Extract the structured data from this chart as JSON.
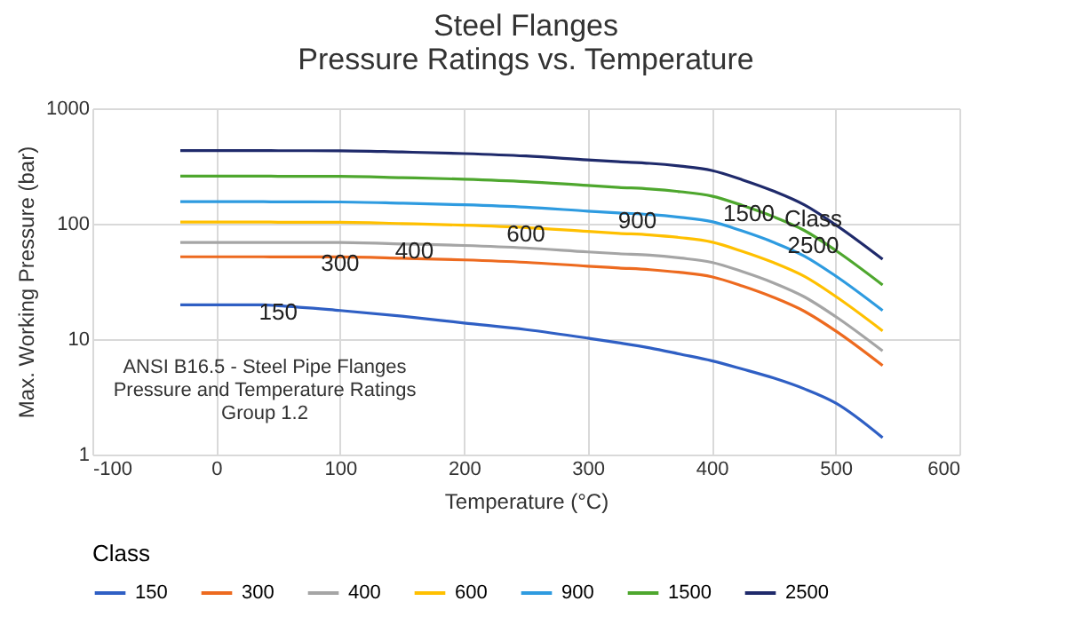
{
  "chart_data": {
    "type": "line",
    "title": "Steel Flanges\nPressure Ratings vs. Temperature",
    "xlabel": "Temperature (°C)",
    "ylabel": "Max. Working Pressure (bar)",
    "legend_title": "Class",
    "x": [
      -29,
      38,
      50,
      100,
      150,
      200,
      250,
      300,
      325,
      350,
      375,
      400,
      425,
      450,
      475,
      500,
      538
    ],
    "series": [
      {
        "name": "150",
        "color": "#2f5fc4",
        "values": [
          19.8,
          19.8,
          19.5,
          17.7,
          15.8,
          13.8,
          12.1,
          10.2,
          9.3,
          8.4,
          7.4,
          6.5,
          5.5,
          4.6,
          3.7,
          2.8,
          1.4
        ]
      },
      {
        "name": "300",
        "color": "#ed6a1f",
        "values": [
          51.7,
          51.7,
          51.5,
          51.5,
          50.2,
          48.6,
          46.3,
          42.9,
          41.4,
          40.0,
          37.8,
          34.7,
          28.8,
          23.0,
          17.4,
          11.8,
          5.9
        ]
      },
      {
        "name": "400",
        "color": "#a5a5a5",
        "values": [
          68.9,
          68.9,
          68.7,
          68.7,
          66.8,
          64.8,
          61.7,
          57.0,
          55.0,
          53.4,
          50.4,
          46.3,
          38.4,
          30.7,
          23.2,
          15.7,
          7.9
        ]
      },
      {
        "name": "600",
        "color": "#ffc000",
        "values": [
          103.4,
          103.4,
          103.0,
          103.0,
          100.3,
          97.2,
          92.7,
          85.7,
          82.6,
          80.0,
          75.7,
          69.4,
          57.5,
          46.0,
          34.9,
          23.5,
          11.8
        ]
      },
      {
        "name": "900",
        "color": "#2e9be0",
        "values": [
          155.1,
          155.1,
          154.6,
          154.4,
          150.6,
          145.8,
          139.0,
          128.6,
          124.0,
          120.1,
          113.5,
          104.2,
          86.3,
          69.0,
          52.3,
          35.3,
          17.7
        ]
      },
      {
        "name": "1500",
        "color": "#4ea72e",
        "values": [
          258.6,
          258.6,
          257.6,
          257.4,
          250.8,
          243.2,
          231.8,
          214.4,
          206.6,
          200.1,
          189.2,
          173.6,
          143.8,
          115.0,
          87.2,
          58.8,
          29.5
        ]
      },
      {
        "name": "2500",
        "color": "#1f2a6b",
        "values": [
          430.9,
          430.9,
          429.4,
          429.0,
          418.2,
          405.4,
          386.2,
          357.1,
          344.3,
          333.5,
          315.3,
          289.3,
          239.7,
          191.7,
          145.3,
          97.9,
          49.2
        ]
      }
    ],
    "annotations": [
      "ANSI B16.5 - Steel Pipe Flanges\nPressure and Temperature Ratings\nGroup 1.2",
      {
        "text": "150",
        "x": 50,
        "y": 19.5
      },
      {
        "text": "300",
        "x": 100,
        "y": 51.5
      },
      {
        "text": "400",
        "x": 160,
        "y": 66
      },
      {
        "text": "600",
        "x": 250,
        "y": 92.7
      },
      {
        "text": "900",
        "x": 340,
        "y": 121
      },
      {
        "text": "1500",
        "x": 430,
        "y": 140
      },
      {
        "text": "Class\n2500",
        "x": 482,
        "y": 125
      }
    ],
    "xlim": [
      -100,
      600
    ],
    "xticks": [
      -100,
      0,
      100,
      200,
      300,
      400,
      500,
      600
    ],
    "ylim": [
      1,
      1000
    ],
    "yticks": [
      1,
      10,
      100,
      1000
    ],
    "log": true,
    "grid": true,
    "legend": "bottom"
  }
}
